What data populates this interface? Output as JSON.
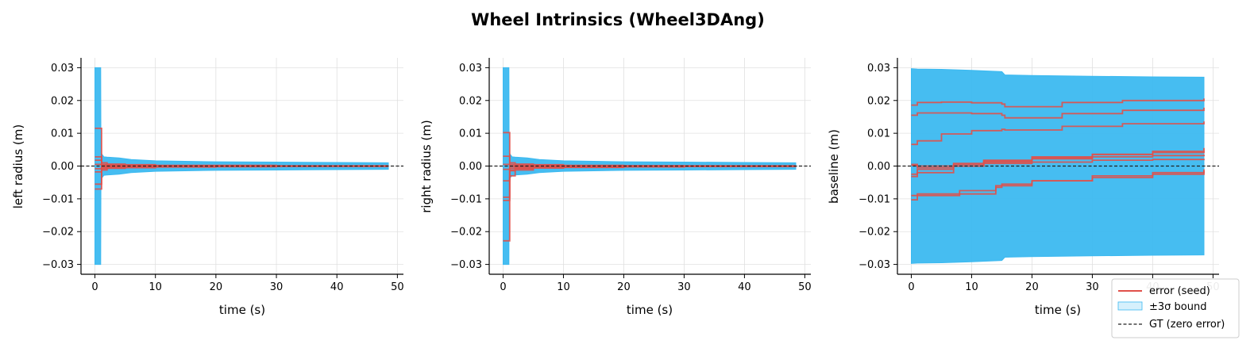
{
  "figure": {
    "title": "Wheel Intrinsics (Wheel3DAng)",
    "legend": {
      "placement": "bottom-right",
      "entries": [
        {
          "key": "error",
          "label": "error (seed)"
        },
        {
          "key": "bound",
          "label": "±3σ bound"
        },
        {
          "key": "gt",
          "label": "GT (zero error)"
        }
      ]
    },
    "colors": {
      "error": "#e0504a",
      "bound_fill": "#3cb9f0",
      "gt": "#222222",
      "grid": "#e0e0e0",
      "legend_bound_fill": "#d6f0fc"
    }
  },
  "chart_data": [
    {
      "type": "line",
      "id": "left",
      "xlabel": "time (s)",
      "ylabel": "left radius (m)",
      "xlim": [
        -2.3,
        51
      ],
      "ylim": [
        -0.033,
        0.033
      ],
      "xticks": [
        0,
        10,
        20,
        30,
        40,
        50
      ],
      "yticks": [
        0.03,
        0.02,
        0.01,
        0.0,
        -0.01,
        -0.02,
        -0.03
      ],
      "ytick_labels": [
        "0.03",
        "0.02",
        "0.01",
        "0.00",
        "−0.01",
        "−0.02",
        "−0.03"
      ],
      "grid": true,
      "bound": {
        "t": [
          0.0,
          0.96,
          1.0,
          1.5,
          2.0,
          4.0,
          6.0,
          10.0,
          20.0,
          30.0,
          40.0,
          48.5
        ],
        "sigma3": [
          0.03,
          0.03,
          0.004,
          0.0028,
          0.0027,
          0.0025,
          0.002,
          0.0016,
          0.0013,
          0.0012,
          0.0011,
          0.001
        ]
      },
      "series": [
        {
          "t": [
            0,
            1.1,
            1.1,
            2,
            5,
            10,
            20,
            30,
            48.5
          ],
          "values": [
            0.0115,
            0.0115,
            0.001,
            0.0006,
            0.0004,
            0.0002,
            0.0002,
            0.0001,
            0.0001
          ]
        },
        {
          "t": [
            0,
            1.1,
            1.1,
            2,
            5,
            10,
            20,
            30,
            48.5
          ],
          "values": [
            0.0028,
            0.0028,
            0.0005,
            0.0003,
            0.0002,
            0.0001,
            0.0001,
            0.0,
            0.0
          ]
        },
        {
          "t": [
            0,
            1.1,
            1.1,
            2,
            5,
            10,
            20,
            30,
            48.5
          ],
          "values": [
            0.0018,
            0.0018,
            0.0004,
            0.0002,
            0.0002,
            0.0001,
            0.0,
            0.0,
            0.0
          ]
        },
        {
          "t": [
            0,
            1.1,
            1.1,
            2,
            5,
            10,
            20,
            30,
            48.5
          ],
          "values": [
            0.0005,
            0.0005,
            0.0001,
            0.0,
            0.0,
            0.0,
            0.0,
            0.0,
            0.0
          ]
        },
        {
          "t": [
            0,
            1.1,
            1.1,
            2,
            5,
            10,
            20,
            30,
            48.5
          ],
          "values": [
            -0.0008,
            -0.0008,
            -0.0002,
            -0.0001,
            -0.0001,
            0.0,
            0.0,
            0.0,
            0.0
          ]
        },
        {
          "t": [
            0,
            1.1,
            1.1,
            2,
            5,
            10,
            20,
            30,
            48.5
          ],
          "values": [
            -0.0018,
            -0.0018,
            -0.0004,
            -0.0003,
            -0.0002,
            -0.0001,
            -0.0001,
            0.0,
            0.0
          ]
        },
        {
          "t": [
            0,
            1.1,
            1.1,
            2,
            5,
            10,
            20,
            30,
            48.5
          ],
          "values": [
            -0.0055,
            -0.0055,
            -0.0008,
            -0.0005,
            -0.0003,
            -0.0002,
            -0.0001,
            -0.0001,
            -0.0001
          ]
        },
        {
          "t": [
            0,
            1.1,
            1.1,
            2,
            5,
            10,
            20,
            30,
            48.5
          ],
          "values": [
            -0.007,
            -0.007,
            -0.0012,
            -0.0007,
            -0.0005,
            -0.0003,
            -0.0002,
            -0.0001,
            -0.0001
          ]
        }
      ]
    },
    {
      "type": "line",
      "id": "right",
      "xlabel": "time (s)",
      "ylabel": "right radius (m)",
      "xlim": [
        -2.3,
        51
      ],
      "ylim": [
        -0.033,
        0.033
      ],
      "xticks": [
        0,
        10,
        20,
        30,
        40,
        50
      ],
      "yticks": [
        0.03,
        0.02,
        0.01,
        0.0,
        -0.01,
        -0.02,
        -0.03
      ],
      "ytick_labels": [
        "0.03",
        "0.02",
        "0.01",
        "0.00",
        "−0.01",
        "−0.02",
        "−0.03"
      ],
      "grid": true,
      "bound": {
        "t": [
          0.0,
          0.96,
          1.0,
          1.5,
          2.0,
          4.0,
          6.0,
          10.0,
          20.0,
          30.0,
          40.0,
          48.5
        ],
        "sigma3": [
          0.03,
          0.03,
          0.004,
          0.0028,
          0.0027,
          0.0025,
          0.002,
          0.0016,
          0.0013,
          0.0012,
          0.0011,
          0.001
        ]
      },
      "series": [
        {
          "t": [
            0,
            1.1,
            1.1,
            2,
            5,
            10,
            20,
            30,
            48.5
          ],
          "values": [
            0.0102,
            0.0102,
            0.001,
            0.0006,
            0.0004,
            0.0002,
            0.0001,
            0.0001,
            0.0001
          ]
        },
        {
          "t": [
            0,
            1.1,
            1.1,
            2,
            5,
            10,
            20,
            30,
            48.5
          ],
          "values": [
            0.003,
            0.003,
            0.0005,
            0.0003,
            0.0002,
            0.0001,
            0.0001,
            0.0,
            0.0
          ]
        },
        {
          "t": [
            0,
            1.1,
            1.1,
            2,
            5,
            10,
            20,
            30,
            48.5
          ],
          "values": [
            0.0005,
            0.0005,
            0.0001,
            0.0,
            0.0,
            0.0,
            0.0,
            0.0,
            0.0
          ]
        },
        {
          "t": [
            0,
            1.1,
            1.1,
            2,
            5,
            10,
            20,
            30,
            48.5
          ],
          "values": [
            -0.001,
            -0.001,
            -0.0002,
            -0.0001,
            0.0,
            0.0,
            0.0,
            0.0,
            0.0
          ]
        },
        {
          "t": [
            0,
            1.1,
            1.1,
            2,
            5,
            10,
            20,
            30,
            48.5
          ],
          "values": [
            -0.0045,
            -0.0045,
            -0.0007,
            -0.0004,
            -0.0003,
            -0.0002,
            -0.0001,
            -0.0001,
            0.0
          ]
        },
        {
          "t": [
            0,
            1.1,
            1.1,
            2,
            5,
            10,
            20,
            30,
            48.5
          ],
          "values": [
            -0.0095,
            -0.0095,
            -0.0012,
            -0.0007,
            -0.0005,
            -0.0003,
            -0.0002,
            -0.0001,
            -0.0001
          ]
        },
        {
          "t": [
            0,
            1.1,
            1.1,
            2,
            5,
            10,
            20,
            30,
            48.5
          ],
          "values": [
            -0.0105,
            -0.0105,
            -0.0014,
            -0.0008,
            -0.0005,
            -0.0003,
            -0.0002,
            -0.0001,
            -0.0001
          ]
        },
        {
          "t": [
            0,
            1.1,
            1.1,
            2,
            5,
            10,
            20,
            30,
            48.5
          ],
          "values": [
            -0.0228,
            -0.0228,
            -0.003,
            -0.0012,
            -0.0006,
            -0.0004,
            -0.0002,
            -0.0001,
            -0.0001
          ]
        }
      ]
    },
    {
      "type": "line",
      "id": "baseline",
      "xlabel": "time (s)",
      "ylabel": "baseline (m)",
      "xlim": [
        -2.3,
        51
      ],
      "ylim": [
        -0.033,
        0.033
      ],
      "xticks": [
        0,
        10,
        20,
        30,
        40,
        50
      ],
      "yticks": [
        0.03,
        0.02,
        0.01,
        0.0,
        -0.01,
        -0.02,
        -0.03
      ],
      "ytick_labels": [
        "0.03",
        "0.02",
        "0.01",
        "0.00",
        "−0.01",
        "−0.02",
        "−0.03"
      ],
      "grid": true,
      "bound": {
        "t": [
          0.0,
          1.0,
          5.0,
          10.0,
          15.0,
          15.5,
          20.0,
          30.0,
          40.0,
          48.5
        ],
        "sigma3": [
          0.0297,
          0.0296,
          0.0295,
          0.0292,
          0.0288,
          0.0278,
          0.0276,
          0.0274,
          0.0272,
          0.0271
        ]
      },
      "series": [
        {
          "t": [
            0,
            1,
            1,
            5,
            10,
            15,
            15.5,
            25,
            35,
            48.5
          ],
          "values": [
            0.0186,
            0.0186,
            0.0194,
            0.0195,
            0.0193,
            0.0189,
            0.0181,
            0.0194,
            0.02,
            0.0206
          ]
        },
        {
          "t": [
            0,
            1,
            1,
            5,
            10,
            15,
            15.5,
            25,
            35,
            48.5
          ],
          "values": [
            0.0155,
            0.0155,
            0.0162,
            0.0162,
            0.016,
            0.0155,
            0.0147,
            0.016,
            0.017,
            0.0178
          ]
        },
        {
          "t": [
            0,
            1,
            1,
            5,
            10,
            15,
            15.5,
            25,
            35,
            48.5
          ],
          "values": [
            0.0066,
            0.0066,
            0.0077,
            0.0098,
            0.0108,
            0.0112,
            0.011,
            0.0121,
            0.0129,
            0.0136
          ]
        },
        {
          "t": [
            0,
            1,
            1,
            7,
            12,
            20,
            30,
            40,
            48.5
          ],
          "values": [
            0.0002,
            0.0002,
            -0.0005,
            0.0,
            0.0012,
            0.0025,
            0.0035,
            0.0045,
            0.0055
          ]
        },
        {
          "t": [
            0,
            1,
            1,
            7,
            12,
            20,
            30,
            40,
            48.5
          ],
          "values": [
            -0.0025,
            -0.0025,
            -0.001,
            0.0008,
            0.0018,
            0.0028,
            0.0036,
            0.0041,
            0.0045
          ]
        },
        {
          "t": [
            0,
            1,
            1,
            7,
            12,
            20,
            30,
            40,
            48.5
          ],
          "values": [
            0.0005,
            0.0005,
            0.0,
            0.0005,
            0.0015,
            0.0022,
            0.0028,
            0.0032,
            0.0035
          ]
        },
        {
          "t": [
            0,
            1,
            1,
            7,
            12,
            20,
            30,
            40,
            48.5
          ],
          "values": [
            -0.0032,
            -0.0032,
            -0.002,
            0.0,
            0.0008,
            0.0012,
            0.0018,
            0.002,
            0.0022
          ]
        },
        {
          "t": [
            0,
            1,
            1,
            8,
            14,
            15,
            20,
            30,
            40,
            48.5
          ],
          "values": [
            -0.0103,
            -0.0103,
            -0.009,
            -0.0085,
            -0.0065,
            -0.0055,
            -0.0045,
            -0.003,
            -0.002,
            -0.001
          ]
        },
        {
          "t": [
            0,
            1,
            1,
            8,
            14,
            20,
            30,
            40,
            48.5
          ],
          "values": [
            -0.009,
            -0.009,
            -0.0085,
            -0.0075,
            -0.006,
            -0.0045,
            -0.0035,
            -0.0025,
            -0.0015
          ]
        }
      ]
    }
  ]
}
